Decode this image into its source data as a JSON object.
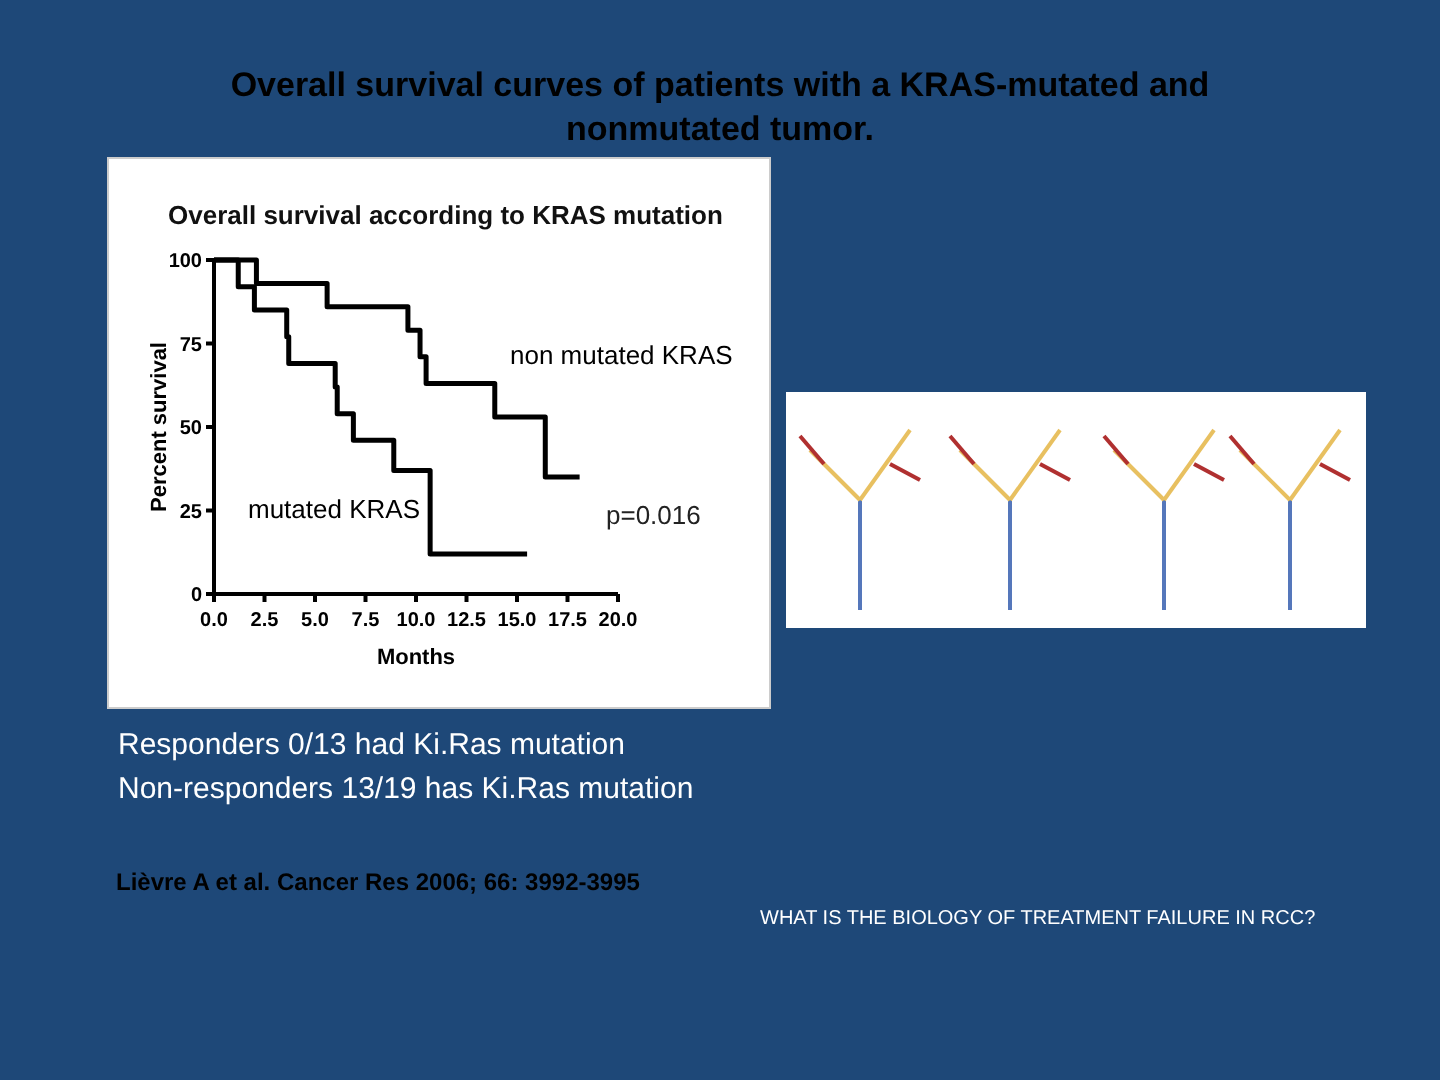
{
  "chart_data": {
    "type": "step",
    "title": "Overall survival according to KRAS mutation",
    "xlabel": "Months",
    "ylabel": "Percent survival",
    "xlim": [
      0,
      20
    ],
    "xticks": [
      {
        "value": 0,
        "label": "0.0"
      },
      {
        "value": 2.5,
        "label": "2.5"
      },
      {
        "value": 5,
        "label": "5.0"
      },
      {
        "value": 7.5,
        "label": "7.5"
      },
      {
        "value": 10,
        "label": "10.0"
      },
      {
        "value": 12.5,
        "label": "12.5"
      },
      {
        "value": 15,
        "label": "15.0"
      },
      {
        "value": 17.5,
        "label": "17.5"
      },
      {
        "value": 20,
        "label": "20.0"
      }
    ],
    "ylim": [
      0,
      100
    ],
    "yticks": [
      0,
      25,
      50,
      75,
      100
    ],
    "grid": false,
    "legend": false,
    "line_style": "solid",
    "series": [
      {
        "name": "non mutated KRAS",
        "color": "#000000",
        "x": [
          0,
          2.1,
          5.6,
          9.6,
          10.2,
          10.5,
          13.9,
          16.4,
          18.1
        ],
        "values": [
          100,
          93,
          86,
          79,
          71,
          63,
          53,
          35,
          35
        ]
      },
      {
        "name": "mutated KRAS",
        "color": "#000000",
        "x": [
          0,
          1.2,
          2.0,
          3.6,
          3.7,
          6.0,
          6.1,
          6.9,
          8.9,
          10.7,
          15.5
        ],
        "values": [
          100,
          92,
          85,
          77,
          69,
          62,
          54,
          46,
          37,
          12,
          12
        ]
      }
    ],
    "annotations": [
      "Overall survival curves of patients with a KRAS-mutated and nonmutated tumor.",
      "p=0.016",
      "Responders 0/13 had Ki.Ras mutation",
      "Non-responders 13/19 has Ki.Ras mutation",
      "Lièvre A et al. Cancer Res 2006; 66: 3992-3995",
      "WHAT IS THE BIOLOGY OF TREATMENT FAILURE IN RCC?"
    ]
  }
}
